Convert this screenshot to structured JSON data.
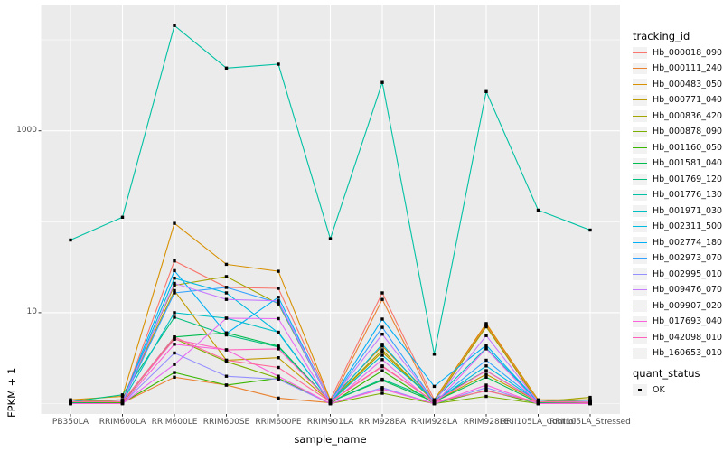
{
  "chart_data": {
    "type": "line",
    "title": "",
    "xlabel": "sample_name",
    "ylabel": "FPKM + 1",
    "y_scale": "log10",
    "ylim": [
      0.8,
      23000
    ],
    "grid": true,
    "legend_position": "right",
    "y_ticks": [
      {
        "label": "1000",
        "value": 1000
      },
      {
        "label": "10",
        "value": 10
      }
    ],
    "y_minor_values": [
      1,
      100,
      10000
    ],
    "categories": [
      "PB350LA",
      "RRIM600LA",
      "RRIM600LE",
      "RRIM600SE",
      "RRIM600PE",
      "RRIM901LA",
      "RRIM928BA",
      "RRIM928LA",
      "RRIM928LE",
      "RRII105LA_Control",
      "RRII105LA_Stressed"
    ],
    "point_marker": {
      "shape": "square",
      "color": "#000000"
    },
    "panel_background": "#EBEBEB",
    "grid_color": "#FFFFFF",
    "series": [
      {
        "name": "Hb_000018_090",
        "color": "#F8766D",
        "values": [
          1.1,
          1.05,
          37,
          19,
          18.5,
          1.1,
          16.5,
          1.1,
          7.4,
          1.05,
          1.05
        ]
      },
      {
        "name": "Hb_000111_240",
        "color": "#EA8331",
        "values": [
          1.02,
          1.02,
          1.95,
          1.6,
          1.15,
          1.02,
          14,
          1.02,
          7.2,
          1.02,
          1.02
        ]
      },
      {
        "name": "Hb_000483_050",
        "color": "#D89000",
        "values": [
          1.1,
          1.2,
          96,
          34,
          28.5,
          1.1,
          4.3,
          1.1,
          7.6,
          1.1,
          1.1
        ]
      },
      {
        "name": "Hb_000771_040",
        "color": "#C09B00",
        "values": [
          1.05,
          1.1,
          17.5,
          3.0,
          3.2,
          1.05,
          3.7,
          1.05,
          2.1,
          1.05,
          1.1
        ]
      },
      {
        "name": "Hb_000836_420",
        "color": "#A3A500",
        "values": [
          1.05,
          1.1,
          20,
          25,
          12.5,
          1.05,
          3.9,
          1.05,
          7.0,
          1.05,
          1.17
        ]
      },
      {
        "name": "Hb_000878_090",
        "color": "#7CAE00",
        "values": [
          1.0,
          1.02,
          5.2,
          2.9,
          1.9,
          1.0,
          1.3,
          1.0,
          1.2,
          1.0,
          1.02
        ]
      },
      {
        "name": "Hb_001160_050",
        "color": "#39B600",
        "values": [
          1.0,
          1.02,
          2.2,
          1.6,
          1.9,
          1.0,
          2.3,
          1.0,
          1.4,
          1.0,
          1.0
        ]
      },
      {
        "name": "Hb_001581_040",
        "color": "#00BB4E",
        "values": [
          1.02,
          1.05,
          5.4,
          6.0,
          4.3,
          1.05,
          1.8,
          1.05,
          1.95,
          1.02,
          1.02
        ]
      },
      {
        "name": "Hb_001769_120",
        "color": "#00BF7D",
        "values": [
          1.05,
          1.25,
          8.9,
          5.7,
          4.2,
          1.05,
          1.85,
          1.1,
          2.3,
          1.05,
          1.05
        ]
      },
      {
        "name": "Hb_001776_130",
        "color": "#00C1A3",
        "values": [
          63,
          112,
          14400,
          4900,
          5400,
          65,
          3400,
          3.5,
          2700,
          134,
          81
        ]
      },
      {
        "name": "Hb_001971_030",
        "color": "#00BFC4",
        "values": [
          1.05,
          1.05,
          10,
          8.7,
          6.1,
          1.05,
          3.4,
          1.1,
          4.1,
          1.05,
          1.06
        ]
      },
      {
        "name": "Hb_002311_500",
        "color": "#00BAE0",
        "values": [
          1.05,
          1.05,
          24,
          16.5,
          6.0,
          1.05,
          4.5,
          1.05,
          2.6,
          1.05,
          1.06
        ]
      },
      {
        "name": "Hb_002774_180",
        "color": "#00B0F6",
        "values": [
          1.05,
          1.05,
          29,
          5.9,
          14.8,
          1.05,
          8.5,
          1.55,
          4.4,
          1.05,
          1.05
        ]
      },
      {
        "name": "Hb_002973_070",
        "color": "#35A2FF",
        "values": [
          1.05,
          1.05,
          16.5,
          19,
          12.8,
          1.05,
          6.9,
          1.05,
          3.0,
          1.05,
          1.05
        ]
      },
      {
        "name": "Hb_002995_010",
        "color": "#9590FF",
        "values": [
          1.0,
          1.0,
          3.6,
          2.0,
          1.85,
          1.0,
          1.5,
          1.0,
          1.5,
          1.0,
          1.0
        ]
      },
      {
        "name": "Hb_009476_070",
        "color": "#C77CFF",
        "values": [
          1.05,
          1.05,
          21,
          14,
          13.5,
          1.05,
          5.8,
          1.05,
          5.6,
          1.05,
          1.05
        ]
      },
      {
        "name": "Hb_009907_020",
        "color": "#E76BF3",
        "values": [
          1.0,
          1.0,
          2.7,
          8.7,
          8.6,
          1.0,
          3.05,
          1.0,
          4.0,
          1.0,
          1.0
        ]
      },
      {
        "name": "Hb_017693_040",
        "color": "#FA62DB",
        "values": [
          1.0,
          1.0,
          4.5,
          3.9,
          2.0,
          1.0,
          1.45,
          1.0,
          1.6,
          1.0,
          1.0
        ]
      },
      {
        "name": "Hb_042098_010",
        "color": "#FF62BC",
        "values": [
          1.05,
          1.05,
          5.1,
          3.9,
          4.0,
          1.05,
          2.55,
          1.05,
          2.3,
          1.05,
          1.03
        ]
      },
      {
        "name": "Hb_160653_010",
        "color": "#FF6A98",
        "values": [
          1.05,
          1.05,
          5.4,
          3.0,
          2.5,
          1.05,
          2.6,
          1.05,
          1.38,
          1.05,
          1.03
        ]
      }
    ]
  },
  "legend": {
    "tracking_title": "tracking_id",
    "quant_title": "quant_status",
    "quant_items": [
      {
        "label": "OK",
        "marker": "black-square"
      }
    ]
  }
}
